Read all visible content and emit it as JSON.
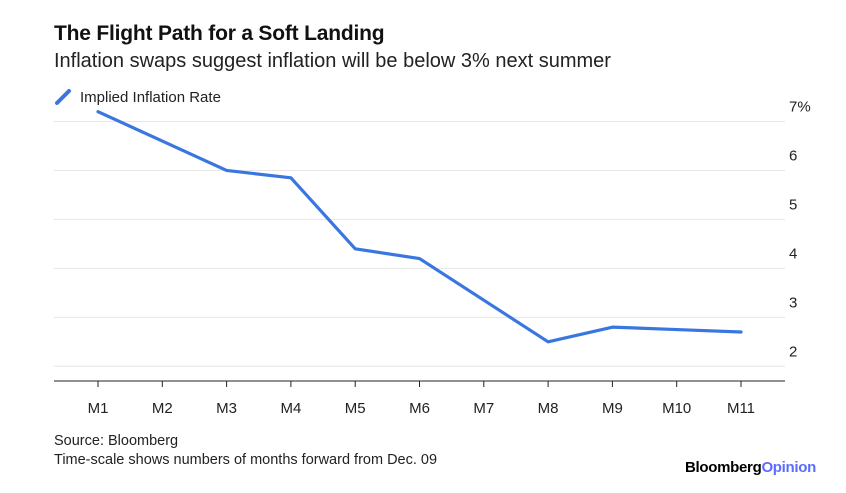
{
  "chart_data": {
    "type": "line",
    "title": "The Flight Path for a Soft Landing",
    "subtitle": "Inflation swaps suggest inflation will be below 3% next summer",
    "categories": [
      "M1",
      "M2",
      "M3",
      "M4",
      "M5",
      "M6",
      "M7",
      "M8",
      "M9",
      "M10",
      "M11"
    ],
    "series": [
      {
        "name": "Implied Inflation Rate",
        "color": "#3a76e0",
        "values": [
          7.2,
          6.6,
          6.0,
          5.85,
          4.4,
          4.2,
          3.35,
          2.5,
          2.8,
          2.75,
          2.7
        ]
      }
    ],
    "ylim": [
      1.7,
      7.5
    ],
    "yticks": [
      2,
      3,
      4,
      5,
      6,
      7
    ],
    "ytick_labels": [
      "2",
      "3",
      "4",
      "5",
      "6",
      "7%"
    ],
    "y_axis_side": "right",
    "grid": true,
    "legend": "top-left"
  },
  "footer": {
    "source": "Source: Bloomberg",
    "note": "Time-scale shows numbers of months forward from Dec. 09",
    "brand_main": "Bloomberg",
    "brand_accent": "Opinion"
  }
}
